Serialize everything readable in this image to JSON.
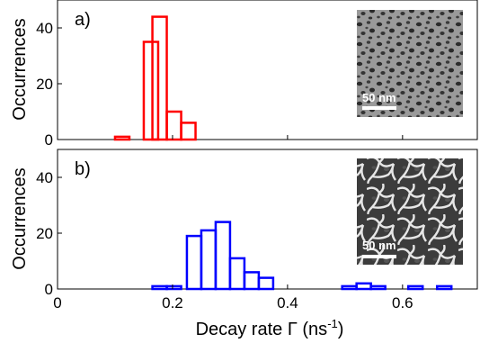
{
  "chart_data": [
    {
      "type": "bar",
      "panel_label": "a)",
      "ylabel": "Occurrences",
      "xlim": [
        0,
        0.73
      ],
      "ylim": [
        0,
        50
      ],
      "yticks": [
        0,
        20,
        40
      ],
      "bin_width": 0.025,
      "bar_color": "#ff0000",
      "bins": [
        {
          "x_start": 0.1,
          "count": 1
        },
        {
          "x_start": 0.125,
          "count": 0
        },
        {
          "x_start": 0.15,
          "count": 35
        },
        {
          "x_start": 0.165,
          "count": 44
        },
        {
          "x_start": 0.19,
          "count": 10
        },
        {
          "x_start": 0.215,
          "count": 6
        }
      ],
      "inset": {
        "scale_bar_label": "50 nm",
        "texture": "dark-holes"
      }
    },
    {
      "type": "bar",
      "panel_label": "b)",
      "ylabel": "Occurrences",
      "xlabel": "Decay rate Γ (ns",
      "xlabel_sup": "-1",
      "xlabel_end": ")",
      "xlim": [
        0,
        0.73
      ],
      "ylim": [
        0,
        50
      ],
      "yticks": [
        0,
        20,
        40
      ],
      "xticks": [
        {
          "value": 0.0,
          "label": "0"
        },
        {
          "value": 0.2,
          "label": "0.2"
        },
        {
          "value": 0.4,
          "label": "0.4"
        },
        {
          "value": 0.6,
          "label": "0.6"
        }
      ],
      "bin_width": 0.025,
      "bar_color": "#0000ff",
      "bins": [
        {
          "x_start": 0.165,
          "count": 1
        },
        {
          "x_start": 0.19,
          "count": 1
        },
        {
          "x_start": 0.225,
          "count": 19
        },
        {
          "x_start": 0.25,
          "count": 21
        },
        {
          "x_start": 0.275,
          "count": 24
        },
        {
          "x_start": 0.3,
          "count": 11
        },
        {
          "x_start": 0.325,
          "count": 6
        },
        {
          "x_start": 0.35,
          "count": 4
        },
        {
          "x_start": 0.495,
          "count": 1
        },
        {
          "x_start": 0.52,
          "count": 2
        },
        {
          "x_start": 0.545,
          "count": 1
        },
        {
          "x_start": 0.57,
          "count": 0
        },
        {
          "x_start": 0.61,
          "count": 1
        },
        {
          "x_start": 0.66,
          "count": 1
        }
      ],
      "inset": {
        "scale_bar_label": "50 nm",
        "texture": "light-network"
      }
    }
  ]
}
